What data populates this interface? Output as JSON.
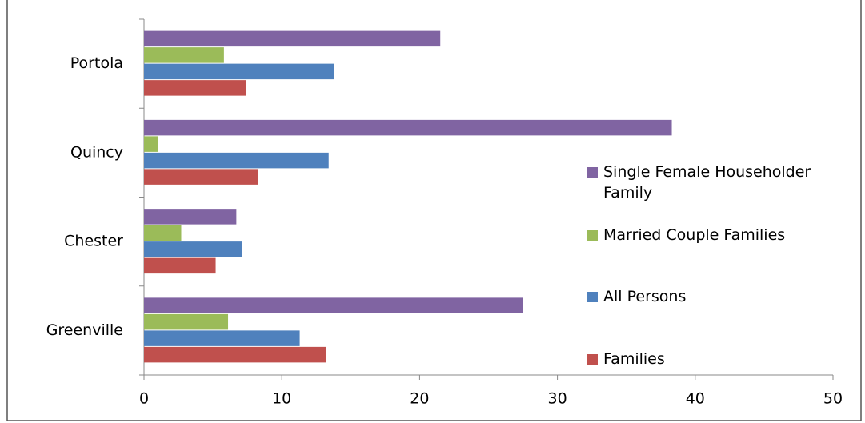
{
  "chart_data": {
    "type": "hbar",
    "categories": [
      "Portola",
      "Quincy",
      "Chester",
      "Greenville"
    ],
    "series": [
      {
        "name": "Single Female Householder Family",
        "color": "#8064a2",
        "values": [
          21.5,
          38.3,
          6.7,
          27.5
        ]
      },
      {
        "name": "Married Couple Families",
        "color": "#9bbb59",
        "values": [
          5.8,
          1.0,
          2.7,
          6.1
        ]
      },
      {
        "name": "All Persons",
        "color": "#4f81bd",
        "values": [
          13.8,
          13.4,
          7.1,
          11.3
        ]
      },
      {
        "name": "Families",
        "color": "#c0504d",
        "values": [
          7.4,
          8.3,
          5.2,
          13.2
        ]
      }
    ],
    "xlim": [
      0,
      50
    ],
    "xticks": [
      0,
      10,
      20,
      30,
      40,
      50
    ],
    "grid": false,
    "legend": "right"
  }
}
